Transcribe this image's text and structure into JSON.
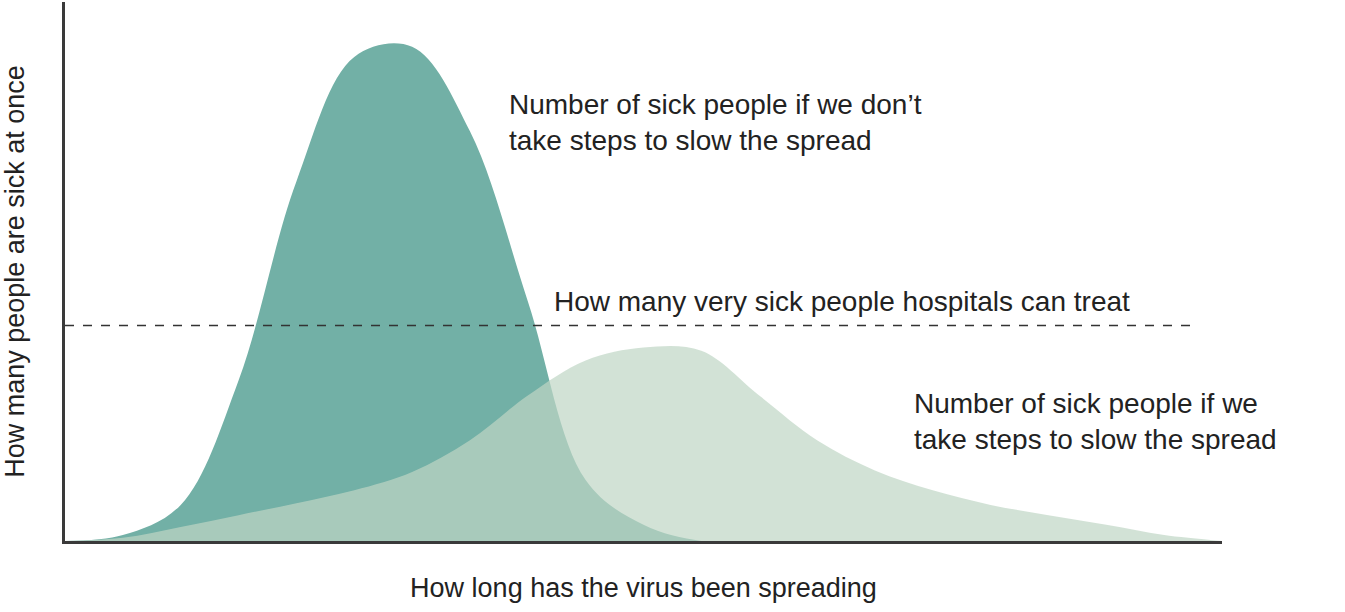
{
  "chart_data": {
    "type": "area",
    "x_label": "How long has the virus been spreading",
    "y_label": "How many people are sick at once",
    "x": [
      0,
      5,
      10,
      15,
      20,
      25,
      30,
      35,
      40,
      45,
      50,
      55,
      60,
      65,
      70,
      75,
      80,
      85,
      90,
      95,
      100
    ],
    "series": [
      {
        "name": "Number of sick people if we don’t\ntake steps to slow the spread",
        "color": "#72b0a6",
        "values": [
          0,
          1.1,
          6.7,
          29.8,
          66.7,
          89.8,
          91.7,
          76,
          44.5,
          11.3,
          3,
          0,
          0,
          0,
          0,
          0,
          0,
          0,
          0,
          0,
          0
        ]
      },
      {
        "name": "Number of sick people if we\ntake steps to slow the spread",
        "color": "#bfd6c4",
        "values": [
          0,
          0.6,
          2.6,
          4.8,
          7,
          9.4,
          12.8,
          18.7,
          27,
          33.5,
          35.9,
          35.3,
          27,
          18.7,
          13.1,
          9.4,
          6.7,
          4.8,
          3,
          1.1,
          0
        ]
      }
    ],
    "threshold": {
      "label": "How many very sick people hospitals can treat",
      "value": 40,
      "line_style": "dashed"
    },
    "xlim": [
      0,
      100
    ],
    "ylim": [
      0,
      100
    ],
    "tick_labels": false,
    "grid": false
  }
}
